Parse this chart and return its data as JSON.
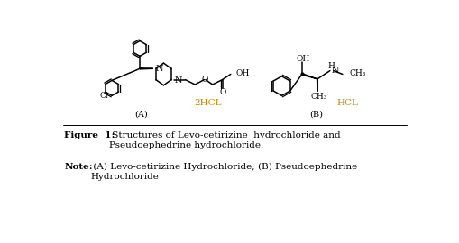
{
  "fig_width": 5.09,
  "fig_height": 2.7,
  "dpi": 100,
  "bg_color": "#ffffff",
  "label_A": "(A)",
  "label_B": "(B)",
  "label_2HCL": "2HCL",
  "label_HCL": "HCL",
  "text_color": "#000000",
  "orange_color": "#c8860a",
  "fig_bold": "Figure  1:",
  "fig_normal": "  Structures of Levo-cetirizine  hydrochloride and\nPseudoephedrine hydrochloride.",
  "note_bold": "Note:",
  "note_normal": "  (A) Levo-cetirizine Hydrochloride; (B) Pseudoephedrine\nHydrochloride"
}
